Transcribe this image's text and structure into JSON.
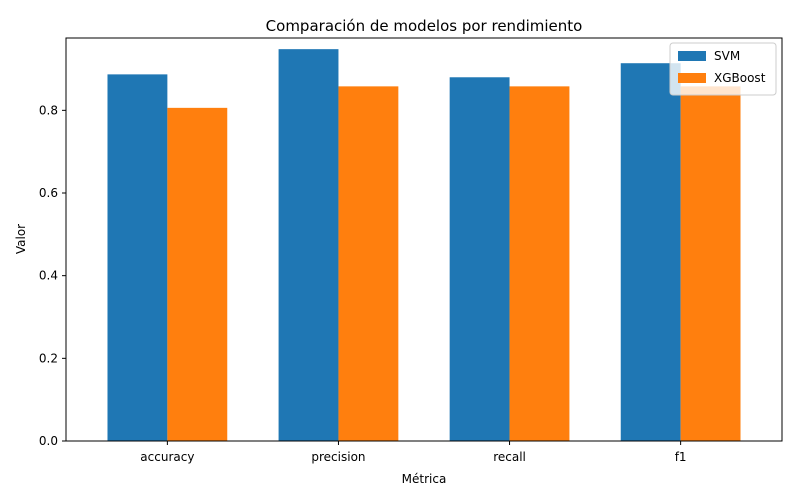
{
  "chart_data": {
    "type": "bar",
    "title": "Comparación de modelos por rendimiento",
    "xlabel": "Métrica",
    "ylabel": "Valor",
    "categories": [
      "accuracy",
      "precision",
      "recall",
      "f1"
    ],
    "series": [
      {
        "name": "SVM",
        "values": [
          0.887,
          0.948,
          0.88,
          0.914
        ],
        "color": "#1f77b4"
      },
      {
        "name": "XGBoost",
        "values": [
          0.806,
          0.858,
          0.858,
          0.858
        ],
        "color": "#ff7f0e"
      }
    ],
    "ylim": [
      0,
      0.975
    ],
    "yticks": [
      "0.0",
      "0.2",
      "0.4",
      "0.6",
      "0.8"
    ],
    "ytick_values": [
      0,
      0.2,
      0.4,
      0.6,
      0.8
    ],
    "grid": false,
    "legend_position": "top-right"
  }
}
